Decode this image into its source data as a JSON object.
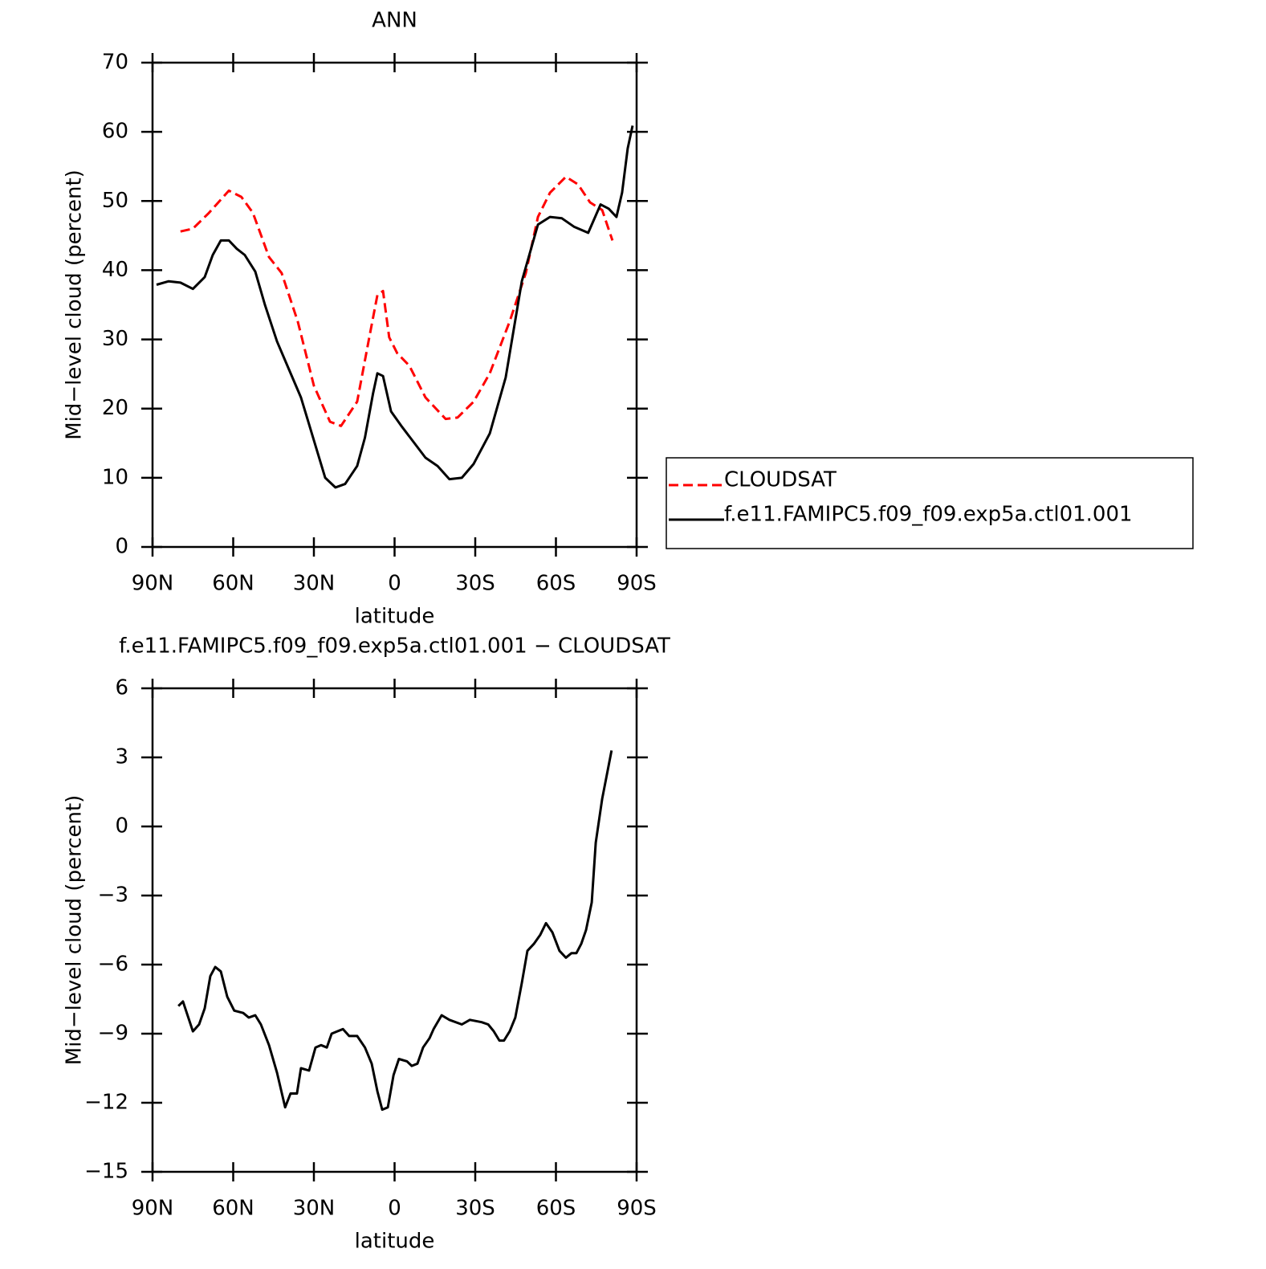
{
  "chart_data": [
    {
      "type": "line",
      "title": "ANN",
      "x_label": "latitude",
      "y_label": "Mid−level cloud (percent)",
      "xlim": [
        90,
        -90
      ],
      "xticks": [
        {
          "value": 90,
          "label": "90N"
        },
        {
          "value": 60,
          "label": "60N"
        },
        {
          "value": 30,
          "label": "30N"
        },
        0,
        {
          "value": -30,
          "label": "30S"
        },
        {
          "value": -60,
          "label": "60S"
        },
        {
          "value": -90,
          "label": "90S"
        }
      ],
      "ylim": [
        0,
        70
      ],
      "yticks": [
        0,
        10,
        20,
        30,
        40,
        50,
        60,
        70
      ],
      "legend": "right",
      "series": [
        {
          "name": "CLOUDSAT",
          "color": "#ff0000",
          "dashed": true,
          "x": [
            79.6,
            75,
            69,
            61.6,
            57,
            52.7,
            46.7,
            42,
            36,
            30,
            24,
            19.9,
            13.9,
            9.4,
            6.4,
            4.3,
            2,
            -1,
            -5.5,
            -11.5,
            -19,
            -23.4,
            -29.4,
            -35.4,
            -42.8,
            -48.8,
            -53.3,
            -57.8,
            -63.7,
            -68.2,
            -72.7,
            -77.2,
            -81
          ],
          "values": [
            45.6,
            46.0,
            48.3,
            51.5,
            50.6,
            48.3,
            41.9,
            39.6,
            32.6,
            23.3,
            18.1,
            17.5,
            21.0,
            30.3,
            36.4,
            37.0,
            30.3,
            28.0,
            26.2,
            21.6,
            18.5,
            18.7,
            21.0,
            25.1,
            32.6,
            39.6,
            47.7,
            51.2,
            53.5,
            52.4,
            49.8,
            48.7,
            44.3
          ]
        },
        {
          "name": "f.e11.FAMIPC5.f09_f09.exp5a.ctl01.001",
          "color": "#000000",
          "dashed": false,
          "x": [
            88.5,
            84,
            79.6,
            75,
            70.6,
            67.6,
            64.6,
            61.6,
            58.7,
            55.7,
            51.8,
            48.2,
            43.7,
            39.3,
            34.8,
            30.3,
            25.8,
            22,
            18.4,
            13.9,
            11,
            8,
            6.4,
            4.3,
            1.3,
            -2.5,
            -7,
            -11.5,
            -16,
            -20.4,
            -25,
            -29.4,
            -35.4,
            -41.3,
            -47.3,
            -53.3,
            -57.8,
            -62.2,
            -66.7,
            -72,
            -76.6,
            -79.6,
            -82.5,
            -84.6,
            -86.7,
            -88.5
          ],
          "values": [
            37.9,
            38.4,
            38.2,
            37.3,
            39.0,
            42.2,
            44.3,
            44.3,
            43.1,
            42.2,
            39.8,
            35.0,
            29.7,
            25.7,
            21.6,
            15.8,
            10.0,
            8.6,
            9.1,
            11.7,
            15.8,
            22.2,
            25.1,
            24.7,
            19.6,
            17.5,
            15.2,
            12.9,
            11.7,
            9.8,
            10.0,
            12.0,
            16.4,
            24.5,
            38.4,
            46.6,
            47.7,
            47.5,
            46.3,
            45.4,
            49.5,
            48.9,
            47.7,
            51.2,
            57.6,
            60.9
          ]
        }
      ]
    },
    {
      "type": "line",
      "title": "f.e11.FAMIPC5.f09_f09.exp5a.ctl01.001 − CLOUDSAT",
      "x_label": "latitude",
      "y_label": "Mid−level cloud (percent)",
      "xlim": [
        90,
        -90
      ],
      "xticks": [
        {
          "value": 90,
          "label": "90N"
        },
        {
          "value": 60,
          "label": "60N"
        },
        {
          "value": 30,
          "label": "30N"
        },
        0,
        {
          "value": -30,
          "label": "30S"
        },
        {
          "value": -60,
          "label": "60S"
        },
        {
          "value": -90,
          "label": "90S"
        }
      ],
      "ylim": [
        -15,
        6
      ],
      "yticks": [
        {
          "value": -15,
          "label": "−15"
        },
        {
          "value": -12,
          "label": "−12"
        },
        {
          "value": -9,
          "label": "−9"
        },
        {
          "value": -6,
          "label": "−6"
        },
        {
          "value": -3,
          "label": "−3"
        },
        0,
        3,
        6
      ],
      "series": [
        {
          "color": "#000000",
          "dashed": false,
          "x": [
            80.4,
            78.7,
            75,
            72.7,
            70.6,
            68.5,
            66.7,
            64.6,
            62.2,
            59.6,
            56.3,
            54.2,
            51.8,
            49.7,
            46.7,
            43.7,
            40.7,
            38.7,
            36.3,
            34.8,
            31.8,
            29.4,
            27.3,
            25.2,
            23.4,
            21.3,
            19.2,
            16.9,
            13.9,
            11,
            8.5,
            6.4,
            4.6,
            2.5,
            0.4,
            -1.6,
            -4.6,
            -6.4,
            -8.5,
            -10.6,
            -13,
            -14.5,
            -17.5,
            -20.4,
            -25,
            -28,
            -32.4,
            -34.8,
            -36.9,
            -39,
            -40.7,
            -42.8,
            -44.9,
            -47.3,
            -49.4,
            -51.8,
            -54.2,
            -56.3,
            -58.7,
            -61.3,
            -63.7,
            -65.8,
            -67.6,
            -69.4,
            -71.2,
            -73.3,
            -74.8,
            -77.2,
            -80.7
          ],
          "values": [
            -7.8,
            -7.6,
            -8.9,
            -8.6,
            -7.9,
            -6.5,
            -6.1,
            -6.3,
            -7.4,
            -8.0,
            -8.1,
            -8.3,
            -8.2,
            -8.6,
            -9.5,
            -10.7,
            -12.2,
            -11.6,
            -11.6,
            -10.5,
            -10.6,
            -9.6,
            -9.5,
            -9.6,
            -9.0,
            -8.9,
            -8.8,
            -9.1,
            -9.1,
            -9.6,
            -10.3,
            -11.5,
            -12.3,
            -12.2,
            -10.8,
            -10.1,
            -10.2,
            -10.4,
            -10.3,
            -9.6,
            -9.2,
            -8.8,
            -8.2,
            -8.4,
            -8.6,
            -8.4,
            -8.5,
            -8.6,
            -8.9,
            -9.3,
            -9.3,
            -8.9,
            -8.3,
            -6.8,
            -5.4,
            -5.1,
            -4.7,
            -4.2,
            -4.6,
            -5.4,
            -5.7,
            -5.5,
            -5.5,
            -5.1,
            -4.5,
            -3.3,
            -0.7,
            1.2,
            3.3
          ]
        }
      ]
    }
  ]
}
